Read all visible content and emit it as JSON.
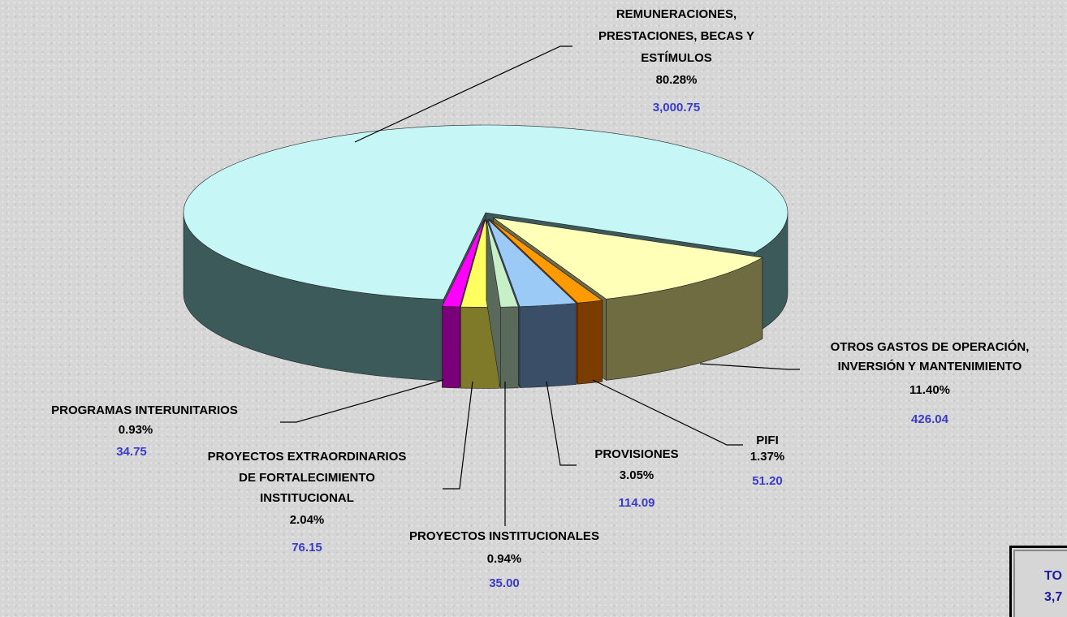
{
  "chart_data": {
    "type": "pie3d",
    "categories": [
      [
        "REMUNERACIONES,",
        "PRESTACIONES, BECAS Y",
        "ESTÍMULOS"
      ],
      [
        "OTROS GASTOS DE OPERACIÓN,",
        "INVERSIÓN Y MANTENIMIENTO"
      ],
      [
        "PIFI"
      ],
      [
        "PROVISIONES"
      ],
      [
        "PROYECTOS INSTITUCIONALES"
      ],
      [
        "PROYECTOS EXTRAORDINARIOS",
        "DE FORTALECIMIENTO",
        "INSTITUCIONAL"
      ],
      [
        "PROGRAMAS INTERUNITARIOS"
      ]
    ],
    "percents": [
      80.28,
      11.4,
      1.37,
      3.05,
      0.94,
      2.04,
      0.93
    ],
    "percent_labels": [
      "80.28%",
      "11.40%",
      "1.37%",
      "3.05%",
      "0.94%",
      "2.04%",
      "0.93%"
    ],
    "values": [
      3000.75,
      426.04,
      51.2,
      114.09,
      35.0,
      76.15,
      34.75
    ],
    "value_labels": [
      "3,000.75",
      "426.04",
      "51.20",
      "114.09",
      "35.00",
      "76.15",
      "34.75"
    ],
    "colors": [
      "#c6f6f6",
      "#ffffb8",
      "#ff9a00",
      "#9ccaf6",
      "#c8f0c8",
      "#ffff60",
      "#ff00ff"
    ],
    "side_colors": [
      "#3c5a5a",
      "#6e6c40",
      "#7a3c00",
      "#3a4e68",
      "#5a6a5a",
      "#7e7a2a",
      "#7a007a"
    ],
    "total_box": [
      "TO",
      "3,7"
    ]
  }
}
